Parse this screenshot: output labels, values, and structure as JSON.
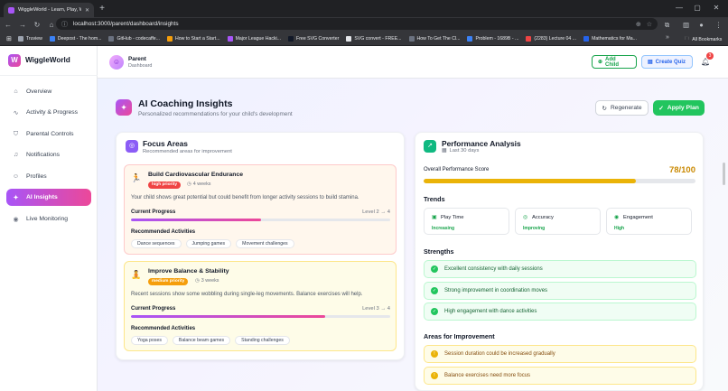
{
  "browser": {
    "tab_title": "WiggleWorld - Learn, Play, Wiggle",
    "url": "localhost:3000/parent/dashboard/insights",
    "bookmarks": [
      "Truview",
      "Deepost - The hom...",
      "GitHub - codecaffe...",
      "How to Start a Start...",
      "Major League Hacki...",
      "Free SVG Converter",
      "SVG convert - FREE...",
      "How To Get The Cl...",
      "Problem - 1689B - ...",
      "(2283) Lecture 04 ...",
      "Mathematics for Ma..."
    ],
    "bookmark_colors": [
      "#9ca3af",
      "#3b82f6",
      "#6b7280",
      "#f59e0b",
      "#a855f7",
      "#111827",
      "#e5e7eb",
      "#6b7280",
      "#3b82f6",
      "#ef4444",
      "#2563eb"
    ],
    "all_bookmarks": "All Bookmarks"
  },
  "sidebar": {
    "logo_letter": "W",
    "brand": "WiggleWorld",
    "items": [
      {
        "label": "Overview",
        "icon": "home-icon",
        "glyph": "⌂"
      },
      {
        "label": "Activity & Progress",
        "icon": "activity-icon",
        "glyph": "∿"
      },
      {
        "label": "Parental Controls",
        "icon": "shield-icon",
        "glyph": "⛉"
      },
      {
        "label": "Notifications",
        "icon": "bell-icon",
        "glyph": "♫"
      },
      {
        "label": "Profiles",
        "icon": "users-icon",
        "glyph": "☺"
      },
      {
        "label": "AI Insights",
        "icon": "brain-icon",
        "glyph": "✦"
      },
      {
        "label": "Live Monitoring",
        "icon": "broadcast-icon",
        "glyph": "◉"
      }
    ],
    "active_index": 5
  },
  "header": {
    "role": "Parent",
    "role_desc": "Dashboard",
    "add_child": "Add Child",
    "create_quiz": "Create Quiz",
    "notif_count": "3"
  },
  "page": {
    "title": "AI Coaching Insights",
    "subtitle": "Personalized recommendations for your child's development",
    "regenerate": "Regenerate",
    "apply_plan": "Apply Plan"
  },
  "focus": {
    "title": "Focus Areas",
    "subtitle": "Recommended areas for improvement",
    "cards": [
      {
        "title": "Build Cardiovascular Endurance",
        "priority": "high priority",
        "priority_color": "#ef4444",
        "duration": "4 weeks",
        "desc": "Your child shows great potential but could benefit from longer activity sessions to build stamina.",
        "progress_label": "Current Progress",
        "level": "Level 2 → 4",
        "progress": 0.5,
        "activities_label": "Recommended Activities",
        "activities": [
          "Dance sequences",
          "Jumping games",
          "Movement challenges"
        ],
        "emoji": "🏃"
      },
      {
        "title": "Improve Balance & Stability",
        "priority": "medium priority",
        "priority_color": "#f59e0b",
        "duration": "3 weeks",
        "desc": "Recent sessions show some wobbling during single-leg movements. Balance exercises will help.",
        "progress_label": "Current Progress",
        "level": "Level 3 → 4",
        "progress": 0.75,
        "activities_label": "Recommended Activities",
        "activities": [
          "Yoga poses",
          "Balance beam games",
          "Standing challenges"
        ],
        "emoji": "🧘"
      }
    ]
  },
  "perf": {
    "title": "Performance Analysis",
    "period": "Last 30 days",
    "score_label": "Overall Performance Score",
    "score": "78/100",
    "score_value": 0.78,
    "trends_title": "Trends",
    "trends": [
      {
        "name": "Play Time",
        "status": "Increasing"
      },
      {
        "name": "Accuracy",
        "status": "Improving"
      },
      {
        "name": "Engagement",
        "status": "High"
      }
    ],
    "strengths_title": "Strengths",
    "strengths": [
      "Excellent consistency with daily sessions",
      "Strong improvement in coordination moves",
      "High engagement with dance activities"
    ],
    "improve_title": "Areas for Improvement",
    "improve": [
      "Session duration could be increased gradually",
      "Balance exercises need more focus"
    ]
  }
}
